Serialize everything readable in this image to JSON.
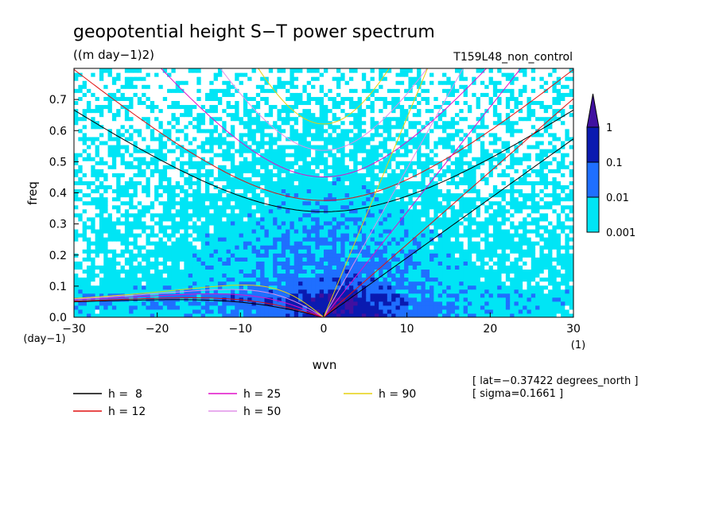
{
  "title": "geopotential height S−T power spectrum",
  "units": "((m day−1)2)",
  "run_label": "T159L48_non_control",
  "footer": {
    "lat_note": "[ lat=−0.37422 degrees_north ]",
    "sigma_note": "[ sigma=0.1661 ]"
  },
  "chart_data": {
    "type": "heatmap",
    "xlabel": "wvn",
    "ylabel": "freq",
    "x_unit_label": "(1)",
    "y_unit_label": "(day−1)",
    "xlim": [
      -30,
      30
    ],
    "ylim": [
      0,
      0.8
    ],
    "x_ticks": [
      -30,
      -20,
      -10,
      0,
      10,
      20,
      30
    ],
    "x_tick_labels": [
      "−30",
      "−20",
      "−10",
      "0",
      "10",
      "20",
      "30"
    ],
    "y_ticks": [
      0.0,
      0.1,
      0.2,
      0.3,
      0.4,
      0.5,
      0.6,
      0.7
    ],
    "y_tick_labels": [
      "0.0",
      "0.1",
      "0.2",
      "0.3",
      "0.4",
      "0.5",
      "0.6",
      "0.7"
    ],
    "colorbar": {
      "levels": [
        0.001,
        0.01,
        0.1,
        1
      ],
      "level_labels": [
        "0.001",
        "0.01",
        "0.1",
        "1"
      ],
      "colors": [
        "#ffffff",
        "#00e5f5",
        "#1f6fff",
        "#0a1ab0",
        "#4010a0"
      ]
    },
    "dispersion_curves": [
      {
        "name": "h =  8",
        "color": "#000000"
      },
      {
        "name": "h = 12",
        "color": "#e01010"
      },
      {
        "name": "h = 25",
        "color": "#e010c8"
      },
      {
        "name": "h = 50",
        "color": "#e090e8"
      },
      {
        "name": "h = 90",
        "color": "#e6d010"
      }
    ]
  }
}
